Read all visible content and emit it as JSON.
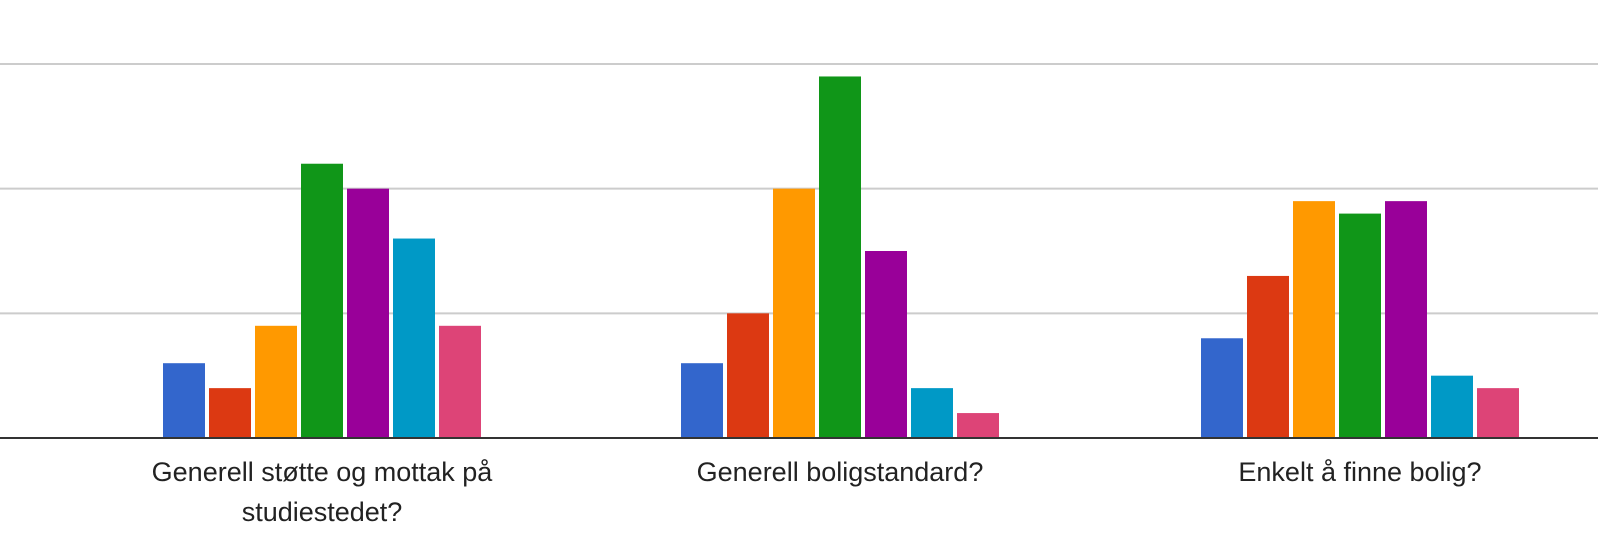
{
  "chart_data": {
    "type": "bar",
    "title": "",
    "xlabel": "",
    "ylabel": "",
    "ylim": [
      0,
      15
    ],
    "grid": true,
    "gridlines_at": [
      5,
      10,
      15
    ],
    "legend": "none",
    "categories": [
      "Generell støtte og mottak på studiestedet?",
      "Generell boligstandard?",
      "Enkelt å finne bolig?"
    ],
    "category_label_lines": [
      [
        "Generell støtte og mottak på",
        "studiestedet?"
      ],
      [
        "Generell boligstandard?"
      ],
      [
        "Enkelt å finne bolig?"
      ]
    ],
    "series": [
      {
        "color": "#3366cc",
        "values": [
          3,
          3,
          4
        ]
      },
      {
        "color": "#dc3912",
        "values": [
          2,
          5,
          6.5
        ]
      },
      {
        "color": "#ff9900",
        "values": [
          4.5,
          10,
          9.5
        ]
      },
      {
        "color": "#109618",
        "values": [
          11,
          14.5,
          9
        ]
      },
      {
        "color": "#990099",
        "values": [
          10,
          7.5,
          9.5
        ]
      },
      {
        "color": "#0099c6",
        "values": [
          8,
          2,
          2.5
        ]
      },
      {
        "color": "#dd4477",
        "values": [
          4.5,
          1,
          2
        ]
      }
    ]
  }
}
